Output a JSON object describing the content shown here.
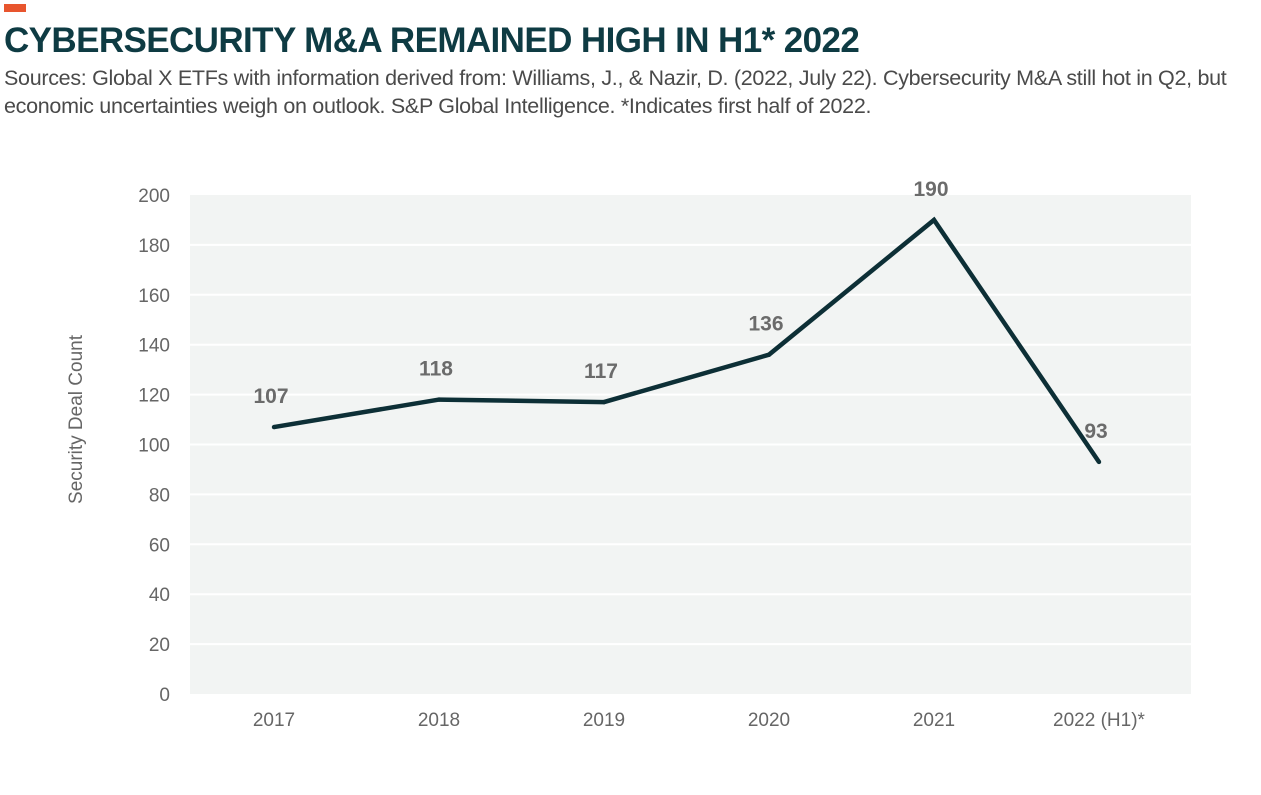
{
  "header": {
    "title": "CYBERSECURITY M&A REMAINED HIGH IN H1* 2022",
    "subtitle": "Sources: Global X ETFs with information derived from: Williams, J., & Nazir, D. (2022, July 22). Cybersecurity M&A still hot in Q2, but economic uncertainties weigh on outlook. S&P Global Intelligence. *Indicates first half of 2022."
  },
  "colors": {
    "accent": "#e8552e",
    "title": "#0e3b43",
    "line": "#0d2f36",
    "plot_background": "#f2f4f3",
    "gridline": "#ffffff"
  },
  "chart_data": {
    "type": "line",
    "title": "CYBERSECURITY M&A REMAINED HIGH IN H1* 2022",
    "xlabel": "",
    "ylabel": "Security Deal Count",
    "categories": [
      "2017",
      "2018",
      "2019",
      "2020",
      "2021",
      "2022 (H1)*"
    ],
    "series": [
      {
        "name": "Security Deal Count",
        "values": [
          107,
          118,
          117,
          136,
          190,
          93
        ]
      }
    ],
    "data_labels": [
      "107",
      "118",
      "117",
      "136",
      "190",
      "93"
    ],
    "ylim": [
      0,
      200
    ],
    "yticks": [
      0,
      20,
      40,
      60,
      80,
      100,
      120,
      140,
      160,
      180,
      200
    ],
    "grid": true,
    "legend": "none"
  }
}
